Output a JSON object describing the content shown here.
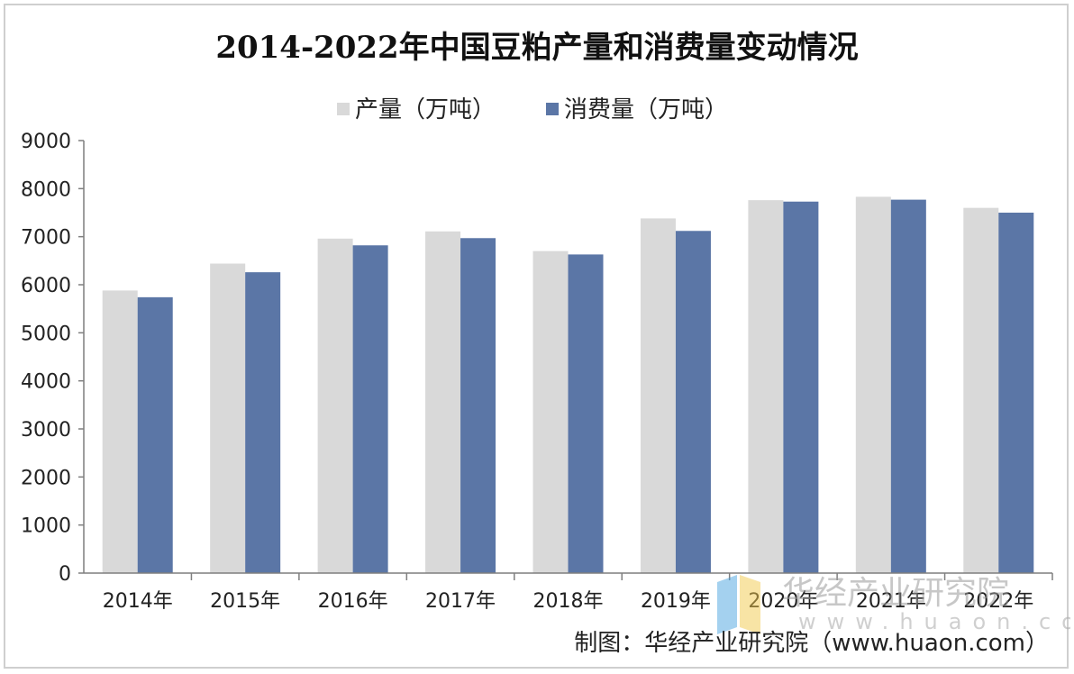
{
  "chart_data": {
    "type": "bar",
    "title": "2014-2022年中国豆粕产量和消费量变动情况",
    "categories": [
      "2014年",
      "2015年",
      "2016年",
      "2017年",
      "2018年",
      "2019年",
      "2020年",
      "2021年",
      "2022年"
    ],
    "series": [
      {
        "name": "产量（万吨）",
        "color": "#d9d9d9",
        "values": [
          5880,
          6440,
          6960,
          7110,
          6700,
          7380,
          7760,
          7830,
          7600
        ]
      },
      {
        "name": "消费量（万吨）",
        "color": "#5b76a6",
        "values": [
          5740,
          6260,
          6820,
          6970,
          6630,
          7120,
          7730,
          7770,
          7500
        ]
      }
    ],
    "ylim": [
      0,
      9000
    ],
    "yticks": [
      "0",
      "1000",
      "2000",
      "3000",
      "4000",
      "5000",
      "6000",
      "7000",
      "8000",
      "9000"
    ],
    "xlabel": "",
    "ylabel": "",
    "legend": "top",
    "grid": false
  },
  "footer": "制图：华经产业研究院（www.huaon.com）",
  "watermark": {
    "name": "华经产业研究院",
    "url": "www.huaon.com"
  }
}
